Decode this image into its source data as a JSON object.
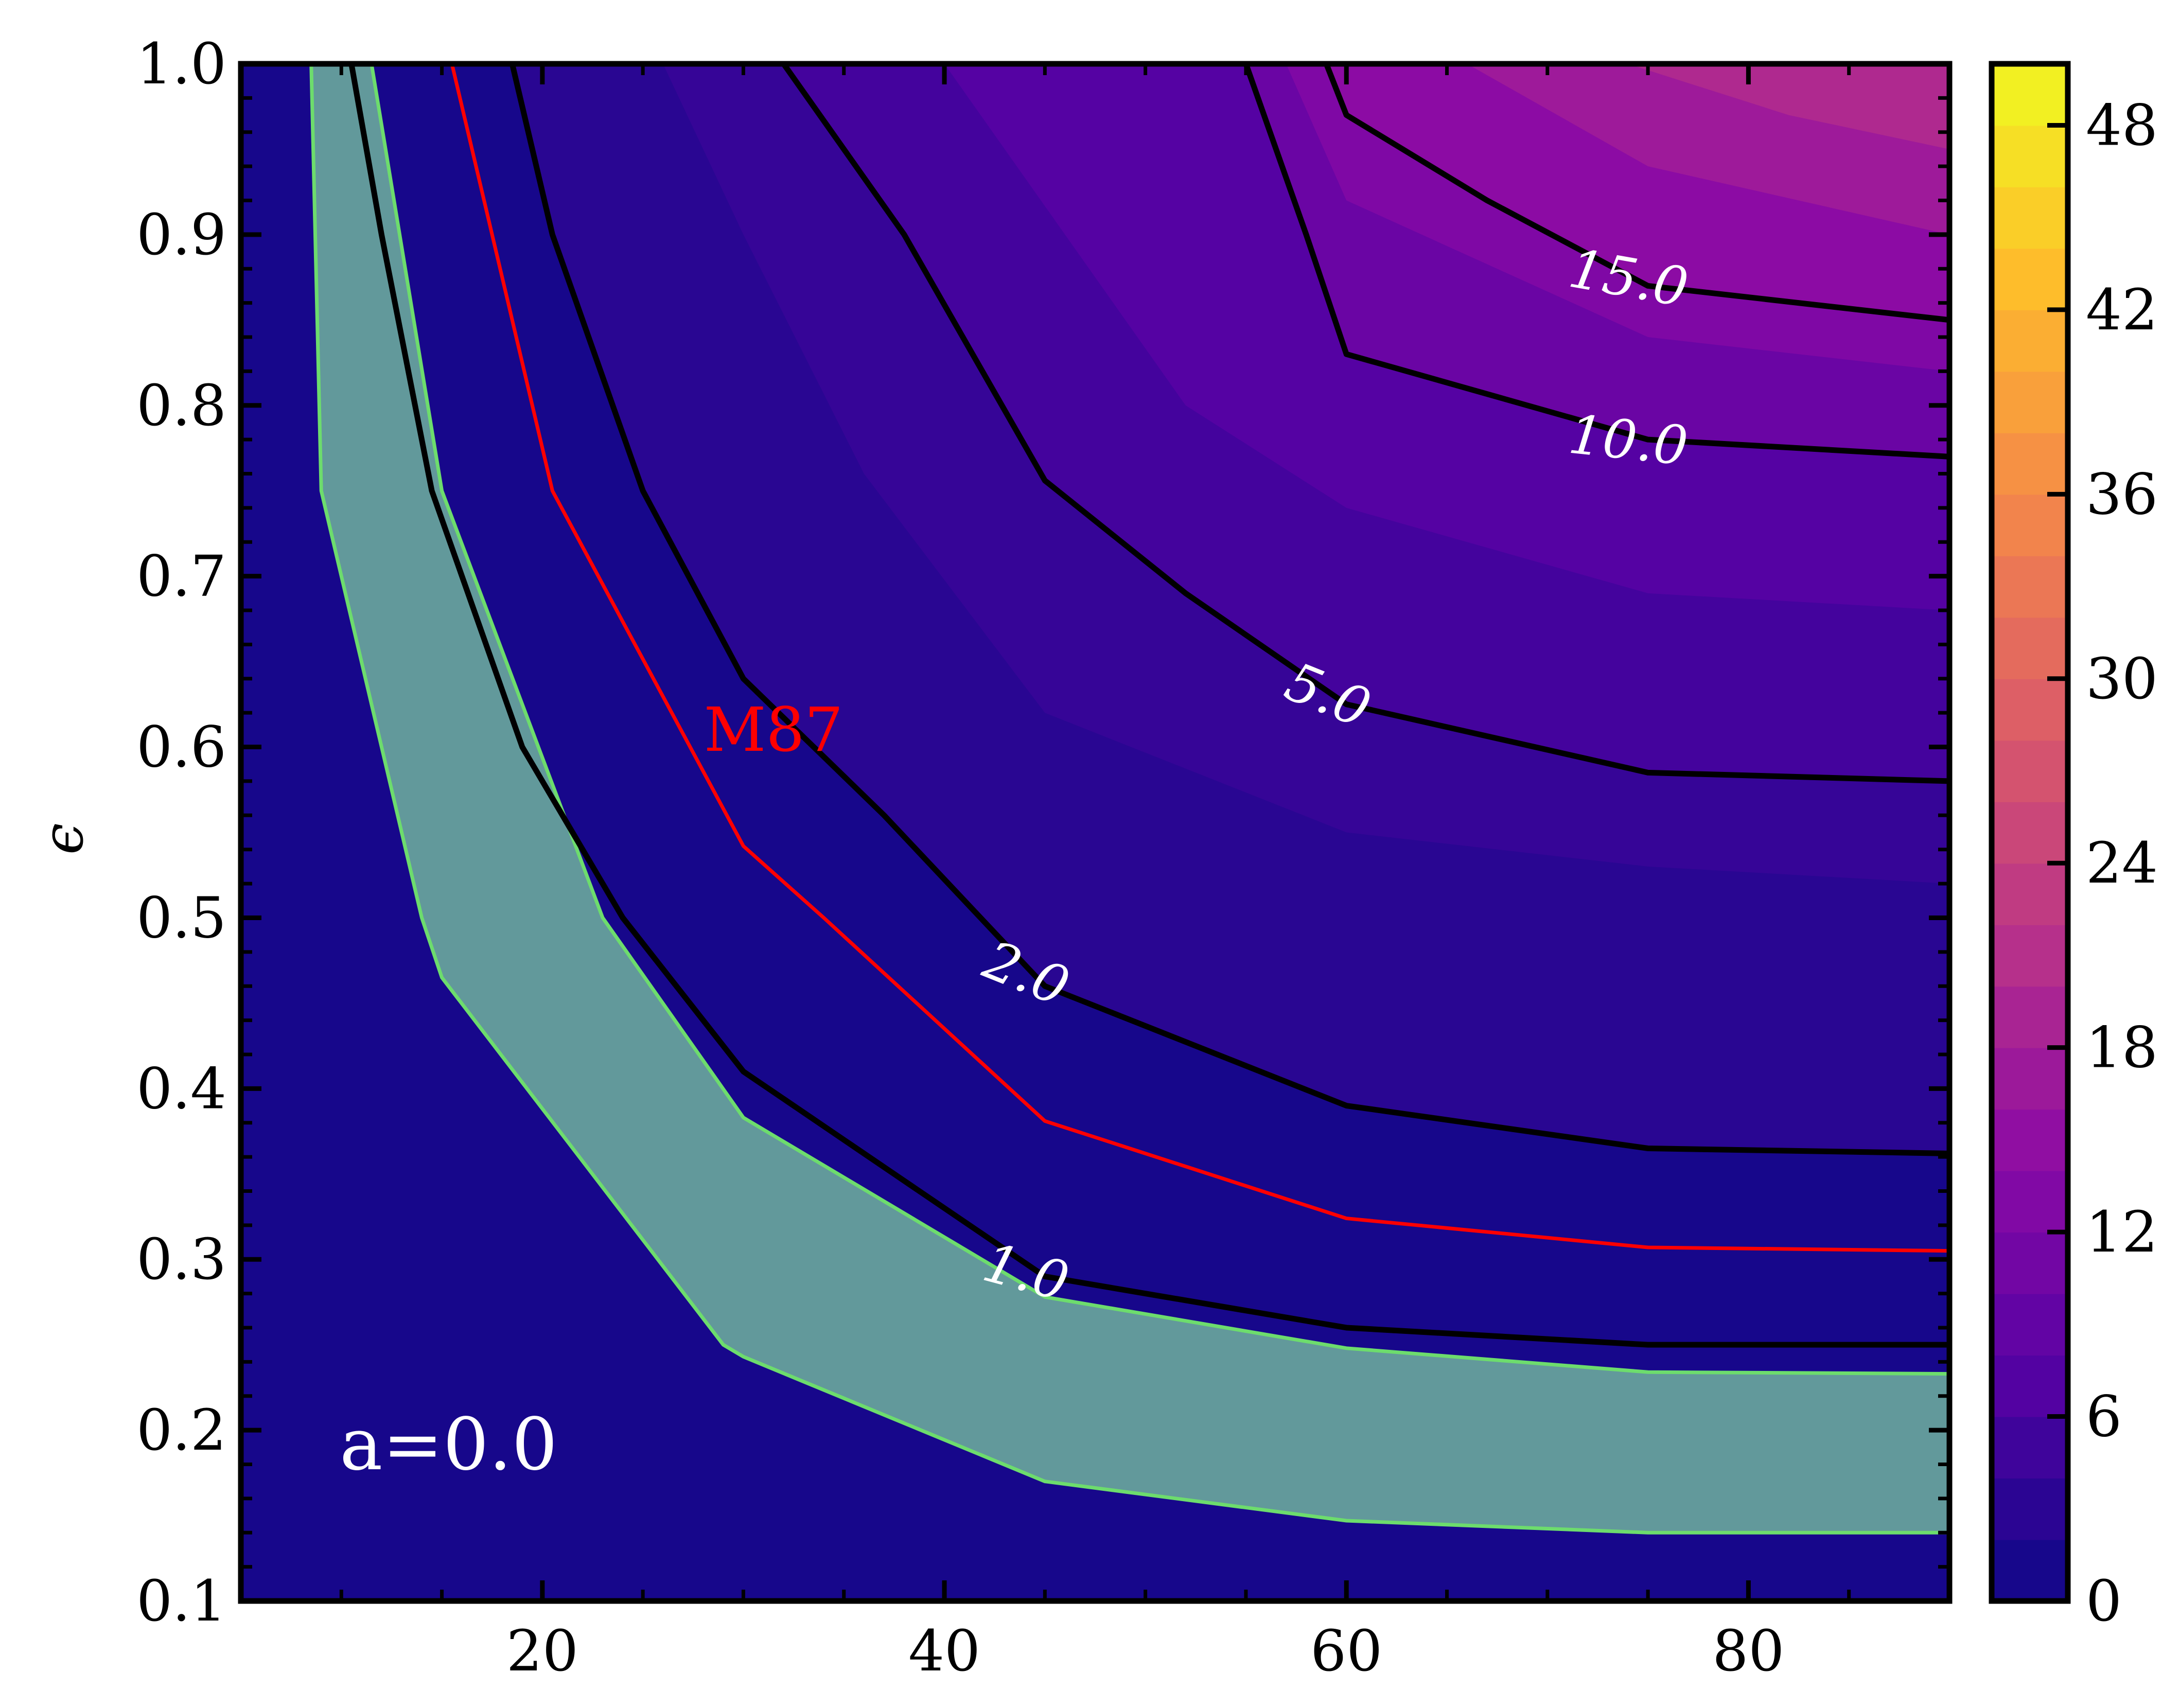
{
  "chart_data": {
    "type": "heatmap",
    "title": "",
    "xlabel": "",
    "ylabel": "ϵ",
    "xlim": [
      5,
      90
    ],
    "ylim": [
      0.1,
      1.0
    ],
    "x_ticks": [
      "20",
      "40",
      "60",
      "80"
    ],
    "y_ticks": [
      "0.1",
      "0.2",
      "0.3",
      "0.4",
      "0.5",
      "0.6",
      "0.7",
      "0.8",
      "0.9",
      "1.0"
    ],
    "colorscale": "plasma",
    "colorbar": {
      "min": 0,
      "max": 50,
      "ticks": [
        "0",
        "6",
        "12",
        "18",
        "24",
        "30",
        "36",
        "42",
        "48"
      ]
    },
    "annotation": "a=0.0",
    "contours": [
      {
        "level_label": "1.0",
        "color": "#000000",
        "points": [
          [
            10.5,
            1.0
          ],
          [
            12,
            0.9
          ],
          [
            14.5,
            0.75
          ],
          [
            19,
            0.6
          ],
          [
            24,
            0.5
          ],
          [
            30,
            0.41
          ],
          [
            45,
            0.29
          ],
          [
            60,
            0.26
          ],
          [
            75,
            0.25
          ],
          [
            90,
            0.25
          ]
        ]
      },
      {
        "level_label": "2.0",
        "color": "#000000",
        "points": [
          [
            18.5,
            1.0
          ],
          [
            20.5,
            0.9
          ],
          [
            25,
            0.75
          ],
          [
            30,
            0.64
          ],
          [
            37,
            0.56
          ],
          [
            45,
            0.46
          ],
          [
            60,
            0.39
          ],
          [
            75,
            0.365
          ],
          [
            90,
            0.362
          ]
        ]
      },
      {
        "level_label": "5.0",
        "color": "#000000",
        "points": [
          [
            32,
            1.0
          ],
          [
            38,
            0.9
          ],
          [
            45,
            0.756
          ],
          [
            52,
            0.69
          ],
          [
            60,
            0.625
          ],
          [
            75,
            0.585
          ],
          [
            90,
            0.58
          ]
        ]
      },
      {
        "level_label": "10.0",
        "color": "#000000",
        "points": [
          [
            55,
            1.0
          ],
          [
            58,
            0.9
          ],
          [
            60,
            0.83
          ],
          [
            75,
            0.78
          ],
          [
            90,
            0.77
          ]
        ]
      },
      {
        "level_label": "15.0",
        "color": "#000000",
        "points": [
          [
            59,
            1.0
          ],
          [
            60,
            0.97
          ],
          [
            67,
            0.92
          ],
          [
            75,
            0.87
          ],
          [
            90,
            0.85
          ]
        ]
      },
      {
        "level_label": "M87",
        "color": "#ff0000",
        "points": [
          [
            15.5,
            1.0
          ],
          [
            20.5,
            0.75
          ],
          [
            30,
            0.542
          ],
          [
            34,
            0.5
          ],
          [
            45,
            0.381
          ],
          [
            60,
            0.324
          ],
          [
            75,
            0.307
          ],
          [
            90,
            0.305
          ]
        ]
      }
    ],
    "band": {
      "color": "#6ddc6d",
      "fill": "#7fd3a1",
      "upper": [
        [
          11.5,
          1.0
        ],
        [
          15,
          0.75
        ],
        [
          23,
          0.5
        ],
        [
          30,
          0.383
        ],
        [
          45,
          0.278
        ],
        [
          60,
          0.248
        ],
        [
          75,
          0.234
        ],
        [
          90,
          0.233
        ]
      ],
      "lower": [
        [
          8.5,
          1.0
        ],
        [
          9,
          0.75
        ],
        [
          14,
          0.5
        ],
        [
          15,
          0.465
        ],
        [
          29,
          0.25
        ],
        [
          30,
          0.243
        ],
        [
          45,
          0.17
        ],
        [
          60,
          0.147
        ],
        [
          75,
          0.14
        ],
        [
          90,
          0.14
        ]
      ]
    }
  }
}
